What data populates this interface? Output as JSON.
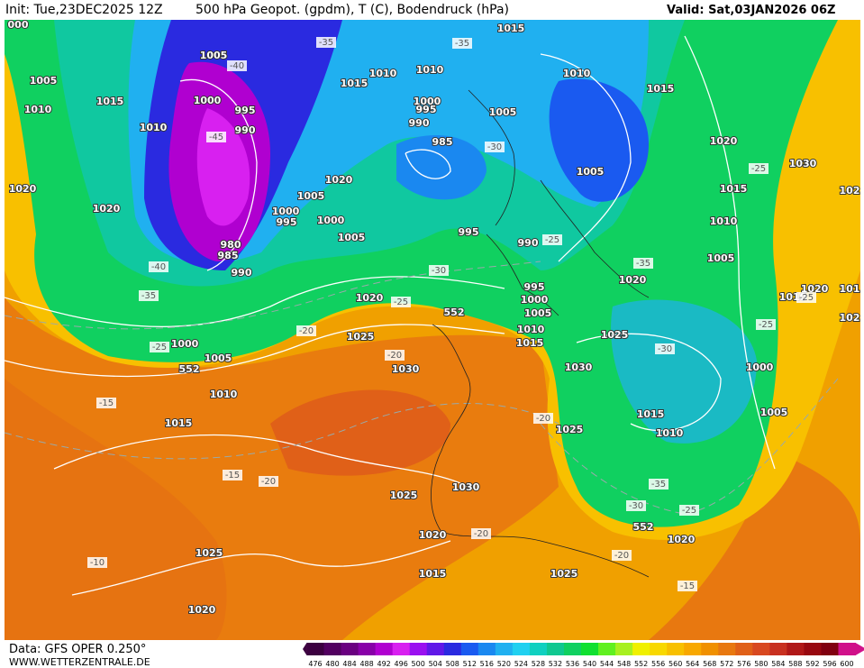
{
  "header": {
    "init": "Init: Tue,23DEC2025 12Z",
    "title": "500 hPa Geopot. (gpdm), T (C), Bodendruck (hPa)",
    "valid": "Valid: Sat,03JAN2026 06Z"
  },
  "footer": {
    "data": "Data: GFS OPER 0.250°",
    "site": "WWW.WETTERZENTRALE.DE"
  },
  "colorbar": {
    "values": [
      476,
      480,
      484,
      488,
      492,
      496,
      500,
      504,
      508,
      512,
      516,
      520,
      524,
      528,
      532,
      536,
      540,
      544,
      548,
      552,
      556,
      560,
      564,
      568,
      572,
      576,
      580,
      584,
      588,
      592,
      596,
      600
    ],
    "colors": [
      "#3c0040",
      "#520060",
      "#6a0080",
      "#8800a8",
      "#b000d0",
      "#d820f0",
      "#9a10f0",
      "#6018e8",
      "#2a2ae0",
      "#1a5af0",
      "#1a88f0",
      "#20b0f0",
      "#20d0f0",
      "#10d0c0",
      "#10c890",
      "#10d060",
      "#10e030",
      "#60f020",
      "#a8f020",
      "#f0f000",
      "#f8d800",
      "#f8c000",
      "#f8a800",
      "#f09000",
      "#e87810",
      "#e06018",
      "#d84820",
      "#c83020",
      "#b01818",
      "#980810",
      "#800010",
      "#d0108a"
    ]
  },
  "map": {
    "labels": [
      "000",
      "1005",
      "1010",
      "1015",
      "1020",
      "1020",
      "1010",
      "1005",
      "-40",
      "1000",
      "995",
      "990",
      "-45",
      "980",
      "985",
      "990",
      "-40",
      "-35",
      "-25",
      "1000",
      "1005",
      "1010",
      "-15",
      "1015",
      "-15",
      "-20",
      "1025",
      "-10",
      "1020",
      "1025",
      "1020",
      "-20",
      "1015",
      "1025",
      "-15",
      "1020",
      "-20",
      "-25",
      "-30",
      "-35",
      "1010",
      "1015",
      "1005",
      "1000",
      "-30",
      "-25",
      "1025",
      "1030",
      "1025",
      "-20",
      "1015",
      "1010",
      "1005",
      "1000",
      "995",
      "990",
      "-25",
      "995",
      "1005",
      "1000",
      "995",
      "1000",
      "1005",
      "1020",
      "-35",
      "1010",
      "1015",
      "1010",
      "1000",
      "995",
      "990",
      "985",
      "-30",
      "1005",
      "-35",
      "1015",
      "1010",
      "1015",
      "1020",
      "1005",
      "1015",
      "1010",
      "1005",
      "-35",
      "1020",
      "1030",
      "102",
      "102",
      "1020",
      "101",
      "1010",
      "-25",
      "-30",
      "-25",
      "1020",
      "552",
      "-20",
      "1025",
      "-20",
      "1030",
      "1030",
      "552",
      "552",
      "-25"
    ]
  }
}
